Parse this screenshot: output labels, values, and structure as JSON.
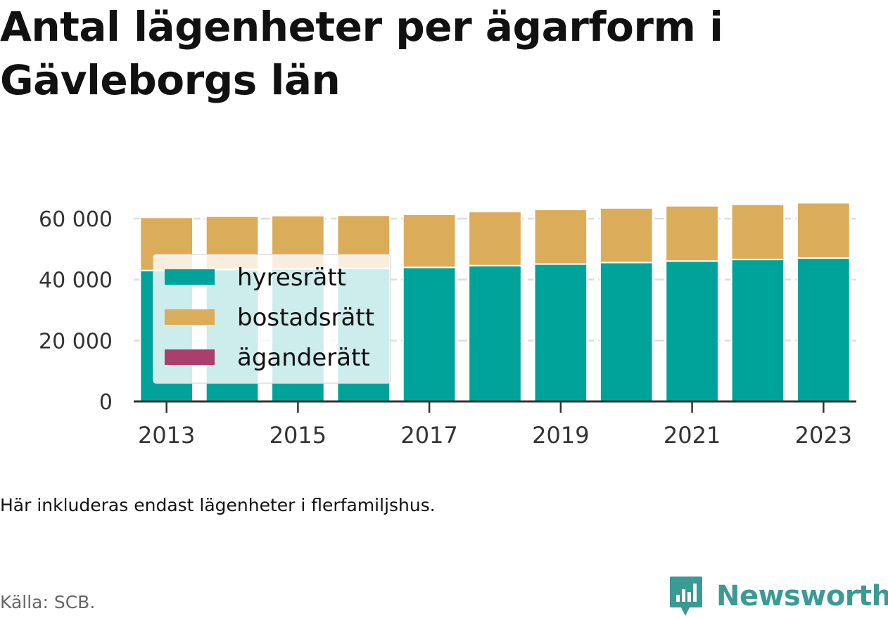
{
  "title": "Antal lägenheter per ägarform i Gävleborgs län",
  "note": "Här inkluderas endast lägenheter i flerfamiljshus.",
  "source": "Källa: SCB.",
  "brand": {
    "name": "Newsworthy",
    "icon": "newsworthy-logo-icon",
    "color": "#3a9a94"
  },
  "colors": {
    "hyresratt": "#00a39a",
    "bostadsratt": "#dbac5a",
    "aganderatt": "#a93f6a",
    "grid": "#dddddd",
    "axis": "#333333"
  },
  "chart_data": {
    "type": "bar",
    "stacked": true,
    "categories": [
      "2013",
      "2014",
      "2015",
      "2016",
      "2017",
      "2018",
      "2019",
      "2020",
      "2021",
      "2022",
      "2023"
    ],
    "x_tick_labels": [
      "2013",
      "2015",
      "2017",
      "2019",
      "2021",
      "2023"
    ],
    "y_ticks": [
      0,
      20000,
      40000,
      60000
    ],
    "y_tick_labels": [
      "0",
      "20 000",
      "40 000",
      "60 000"
    ],
    "ylim": [
      0,
      66000
    ],
    "grid": true,
    "legend_position": "top-left",
    "series": [
      {
        "name": "hyresrätt",
        "color": "#00a39a",
        "values": [
          43000,
          43300,
          43500,
          43700,
          44000,
          44600,
          45100,
          45600,
          46100,
          46600,
          47100
        ]
      },
      {
        "name": "bostadsrätt",
        "color": "#dbac5a",
        "values": [
          17400,
          17500,
          17500,
          17400,
          17400,
          17700,
          17900,
          17900,
          18100,
          18100,
          18100
        ]
      },
      {
        "name": "äganderätt",
        "color": "#a93f6a",
        "values": [
          0,
          0,
          0,
          0,
          0,
          0,
          0,
          0,
          0,
          0,
          0
        ]
      }
    ]
  }
}
